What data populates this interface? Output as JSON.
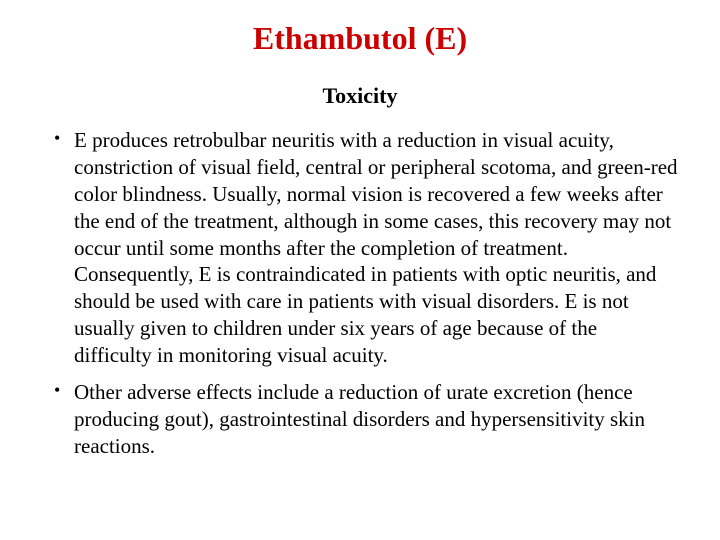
{
  "title": {
    "text": "Ethambutol (E)",
    "color": "#cc0000",
    "fontsize": 32
  },
  "subtitle": {
    "text": "Toxicity",
    "color": "#000000",
    "fontsize": 22
  },
  "body": {
    "color": "#000000",
    "fontsize": 21,
    "line_height": 1.28,
    "bullet_fontsize": 18
  },
  "bullets": [
    {
      "text": "E produces retrobulbar neuritis with a reduction in visual acuity, constriction of visual field, central or peripheral scotoma, and green-red color blindness. Usually, normal vision is recovered a few weeks after the end of the treatment, although in some cases, this recovery may not occur until some months after the completion of treatment. Consequently, E is contraindicated in patients with optic neuritis, and should be used with care in patients with visual disorders. E is not usually given to children under six years of age because of the difficulty in monitoring visual acuity."
    },
    {
      "text": "Other adverse effects include a reduction of urate excretion (hence producing gout), gastrointestinal disorders and hypersensitivity skin reactions."
    }
  ],
  "background_color": "#ffffff"
}
